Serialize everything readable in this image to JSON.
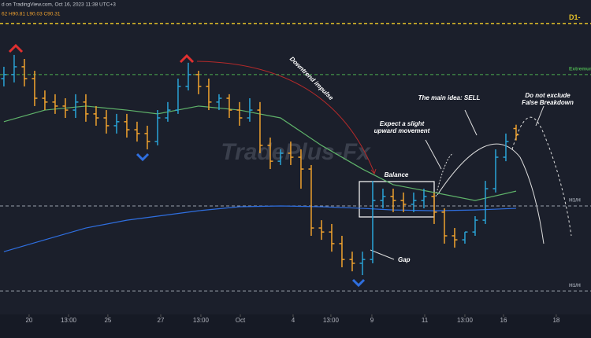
{
  "header": {
    "source": "d on TradingView.com, Oct 16, 2023 11:38 UTC+3",
    "ohlc": "62 H90.81 L90.03 C90.31"
  },
  "watermark": "TradePlus-Fx",
  "chart_data": {
    "type": "ohlc",
    "up_color": "#2aa3d6",
    "down_color": "#f0a22e",
    "open": [
      93.11,
      93.31,
      93.7,
      93.11,
      92.13,
      91.94,
      91.74,
      91.54,
      91.94,
      91.35,
      91.15,
      90.76,
      90.96,
      90.56,
      90.37,
      89.97,
      91.15,
      91.54,
      92.72,
      93.31,
      92.72,
      91.94,
      92.13,
      91.54,
      91.15,
      91.54,
      89.78,
      88.99,
      89.39,
      89.19,
      88.6,
      85.66,
      85.46,
      84.88,
      84.09,
      83.9,
      84.09,
      87.03,
      87.23,
      87.03,
      86.84,
      87.03,
      87.23,
      86.45,
      85.27,
      85.07,
      85.46,
      86.05,
      87.62,
      89.19,
      90.62
    ],
    "high": [
      93.7,
      94.29,
      94.09,
      93.5,
      92.52,
      92.33,
      92.13,
      92.33,
      92.33,
      91.74,
      91.54,
      91.35,
      91.35,
      90.96,
      90.76,
      91.54,
      91.94,
      93.11,
      93.9,
      93.5,
      93.11,
      92.33,
      92.33,
      91.94,
      92.13,
      91.94,
      90.17,
      89.58,
      89.97,
      89.58,
      88.8,
      86.05,
      85.86,
      85.27,
      84.48,
      84.48,
      88.01,
      87.62,
      87.62,
      87.43,
      87.43,
      87.62,
      87.43,
      86.64,
      85.66,
      85.46,
      86.25,
      88.01,
      89.58,
      90.37,
      90.81
    ],
    "low": [
      92.72,
      92.92,
      92.72,
      91.74,
      91.54,
      91.35,
      91.15,
      91.15,
      90.96,
      90.76,
      90.37,
      90.37,
      90.17,
      89.97,
      89.58,
      89.78,
      90.96,
      91.35,
      92.52,
      92.33,
      91.54,
      91.54,
      91.15,
      90.76,
      90.96,
      89.39,
      88.6,
      88.8,
      88.8,
      87.62,
      85.27,
      85.07,
      84.48,
      83.7,
      83.5,
      83.31,
      83.9,
      86.64,
      86.45,
      86.45,
      86.45,
      86.64,
      85.86,
      84.88,
      84.68,
      84.88,
      85.27,
      85.86,
      87.43,
      88.99,
      90.03
    ],
    "close": [
      93.31,
      93.7,
      93.11,
      92.13,
      91.94,
      91.74,
      91.54,
      91.94,
      91.35,
      91.15,
      90.76,
      90.96,
      90.56,
      90.37,
      89.97,
      91.15,
      91.54,
      92.72,
      93.31,
      92.72,
      91.94,
      92.13,
      91.54,
      91.15,
      91.54,
      89.78,
      88.99,
      89.39,
      89.19,
      88.6,
      85.66,
      85.46,
      84.88,
      84.09,
      83.9,
      84.09,
      87.03,
      87.23,
      87.03,
      86.84,
      87.03,
      87.23,
      86.45,
      85.27,
      85.07,
      85.46,
      86.05,
      87.62,
      89.19,
      89.97,
      90.31
    ],
    "lines": [
      {
        "color": "#5fb36a",
        "x": [
          0,
          4,
          8,
          12,
          15,
          19,
          23,
          27,
          31,
          35,
          38,
          42,
          46,
          50
        ],
        "values": [
          90.96,
          91.54,
          91.74,
          91.54,
          91.35,
          91.74,
          91.54,
          91.15,
          89.78,
          88.6,
          87.82,
          87.43,
          87.03,
          87.5
        ]
      },
      {
        "color": "#2f6fe0",
        "x": [
          0,
          4,
          8,
          12,
          15,
          19,
          23,
          27,
          31,
          35,
          38,
          42,
          46,
          50
        ],
        "values": [
          84.48,
          85.07,
          85.66,
          86.05,
          86.25,
          86.52,
          86.72,
          86.76,
          86.72,
          86.64,
          86.56,
          86.52,
          86.56,
          86.64
        ]
      }
    ],
    "levels": [
      {
        "label": "D1-",
        "value": 95.86,
        "color": "#e6c229"
      },
      {
        "label": "Extremum",
        "value": 93.31,
        "color": "#4caf50"
      },
      {
        "label": "H1/H",
        "value": 86.76,
        "color": "#9aa0ab"
      },
      {
        "label": "H1/H",
        "value": 82.52,
        "color": "#9aa0ab"
      }
    ],
    "annotations": [
      [
        "Downtrend impulse"
      ],
      [
        "Expect a slight",
        "upward movement"
      ],
      [
        "The main idea: SELL"
      ],
      [
        "Do not exclude",
        "False Breakdown"
      ],
      [
        "Balance"
      ],
      [
        "Gap"
      ]
    ],
    "xlim": [
      -0.38,
      57.31
    ],
    "ylim": [
      81.35,
      97.03
    ],
    "xticks": [
      {
        "value": 2.46,
        "label": "20"
      },
      {
        "value": 6.31,
        "label": "13:00"
      },
      {
        "value": 10.15,
        "label": "25"
      },
      {
        "value": 15.31,
        "label": "27"
      },
      {
        "value": 19.23,
        "label": "13:00"
      },
      {
        "value": 23.08,
        "label": "Oct"
      },
      {
        "value": 28.23,
        "label": "4"
      },
      {
        "value": 31.92,
        "label": "13:00"
      },
      {
        "value": 35.92,
        "label": "9"
      },
      {
        "value": 41.08,
        "label": "11"
      },
      {
        "value": 45,
        "label": "13:00"
      },
      {
        "value": 48.77,
        "label": "16"
      },
      {
        "value": 53.92,
        "label": "18"
      }
    ]
  }
}
